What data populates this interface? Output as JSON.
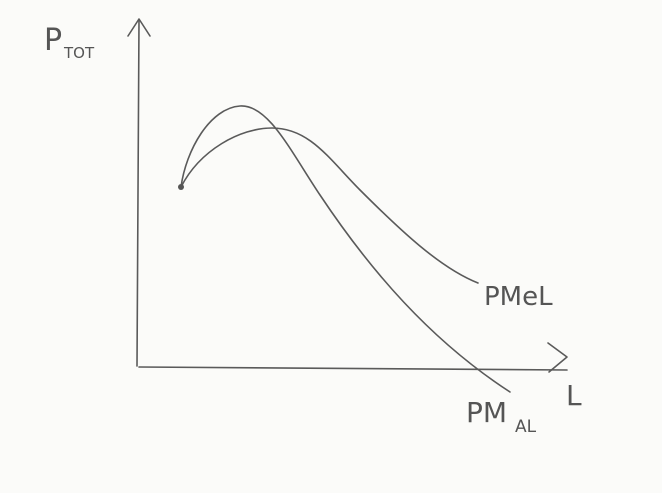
{
  "axes": {
    "y": {
      "label": "P",
      "subscript": "TOT"
    },
    "x": {
      "label": "L"
    }
  },
  "curves": [
    {
      "label": "PMeL"
    },
    {
      "label": "PM",
      "subscript": "AL"
    }
  ]
}
